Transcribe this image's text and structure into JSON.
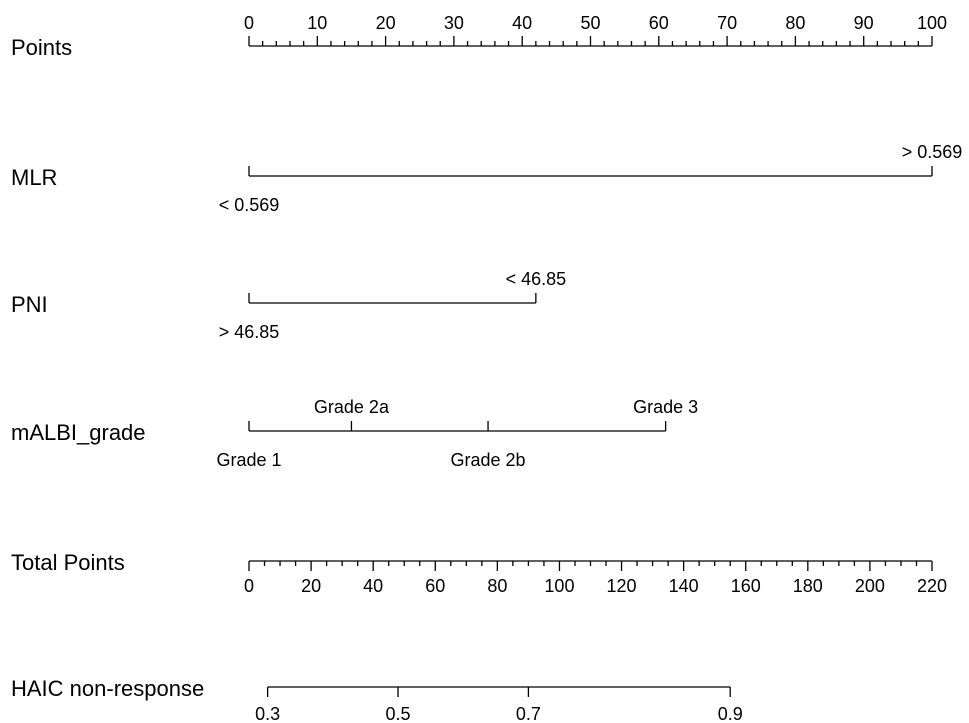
{
  "chart_data": {
    "type": "nomogram",
    "colors": {
      "ink": "#000000",
      "background": "#ffffff"
    },
    "points_range": [
      0,
      100
    ],
    "rows": [
      {
        "label": "Points",
        "kind": "scale",
        "range": [
          0,
          100
        ],
        "major_ticks": [
          0,
          10,
          20,
          30,
          40,
          50,
          60,
          70,
          80,
          90,
          100
        ],
        "minor_step": 2,
        "tick_labels": [
          "0",
          "10",
          "20",
          "30",
          "40",
          "50",
          "60",
          "70",
          "80",
          "90",
          "100"
        ]
      },
      {
        "label": "MLR",
        "kind": "variable",
        "levels": [
          {
            "label": "< 0.569",
            "points": 0
          },
          {
            "label": "> 0.569",
            "points": 100
          }
        ]
      },
      {
        "label": "PNI",
        "kind": "variable",
        "levels": [
          {
            "label": "> 46.85",
            "points": 0
          },
          {
            "label": "< 46.85",
            "points": 42
          }
        ]
      },
      {
        "label": "mALBI_grade",
        "kind": "variable",
        "levels": [
          {
            "label": "Grade 1",
            "points": 0
          },
          {
            "label": "Grade 2a",
            "points": 15
          },
          {
            "label": "Grade 2b",
            "points": 35
          },
          {
            "label": "Grade 3",
            "points": 61
          }
        ]
      },
      {
        "label": "Total Points",
        "kind": "scale",
        "range": [
          0,
          220
        ],
        "major_ticks": [
          0,
          20,
          40,
          60,
          80,
          100,
          120,
          140,
          160,
          180,
          200,
          220
        ],
        "minor_step": 5,
        "tick_labels": [
          "0",
          "20",
          "40",
          "60",
          "80",
          "100",
          "120",
          "140",
          "160",
          "180",
          "200",
          "220"
        ]
      },
      {
        "label": "HAIC non-response",
        "kind": "probability",
        "axis_total_points": [
          6,
          155
        ],
        "ticks": [
          {
            "label": "0.3",
            "total_points": 6
          },
          {
            "label": "0.5",
            "total_points": 48
          },
          {
            "label": "0.7",
            "total_points": 90
          },
          {
            "label": "0.9",
            "total_points": 155
          }
        ]
      }
    ]
  }
}
